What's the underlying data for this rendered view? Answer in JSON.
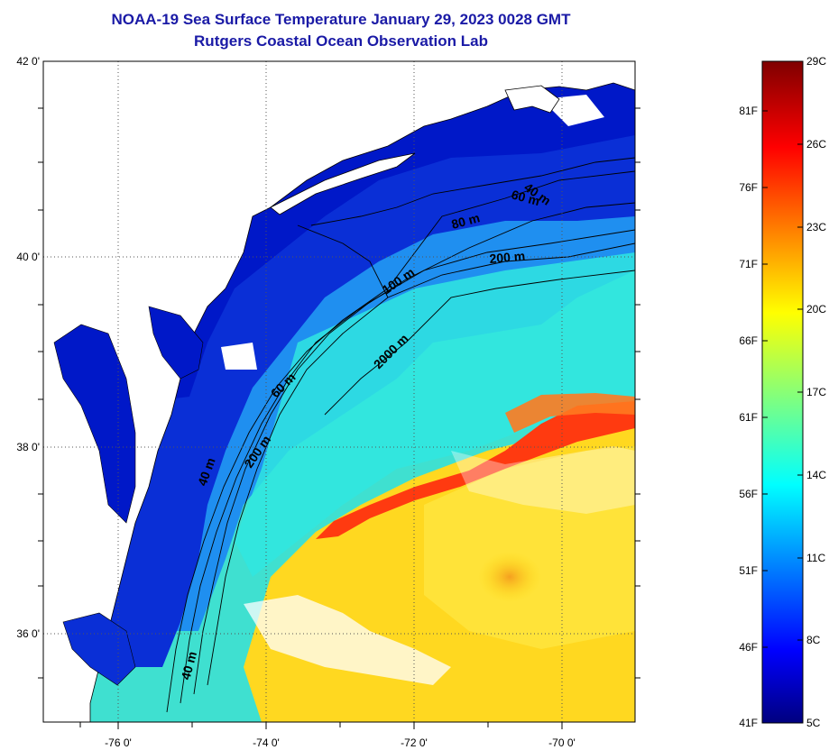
{
  "title": {
    "line1": "NOAA-19 Sea Surface Temperature January 29, 2023 0028 GMT",
    "line2": "Rutgers Coastal Ocean Observation Lab"
  },
  "map": {
    "lat_labels": [
      "42 0'",
      "40 0'",
      "38 0'",
      "36 0'"
    ],
    "lon_labels": [
      "-76 0'",
      "-74 0'",
      "-72 0'",
      "-70 0'"
    ],
    "depth_contours": [
      "40 m",
      "60 m",
      "80 m",
      "100 m",
      "200 m",
      "2000 m"
    ]
  },
  "colorbar": {
    "fahrenheit_ticks": [
      "81F",
      "76F",
      "71F",
      "66F",
      "61F",
      "56F",
      "51F",
      "46F",
      "41F"
    ],
    "celsius_ticks": [
      "29C",
      "26C",
      "23C",
      "20C",
      "17C",
      "14C",
      "11C",
      "8C",
      "5C"
    ],
    "colors": [
      "#00007f",
      "#0000ff",
      "#0080ff",
      "#00ffff",
      "#80ff80",
      "#ffff00",
      "#ff8000",
      "#ff0000",
      "#7f0000"
    ]
  }
}
